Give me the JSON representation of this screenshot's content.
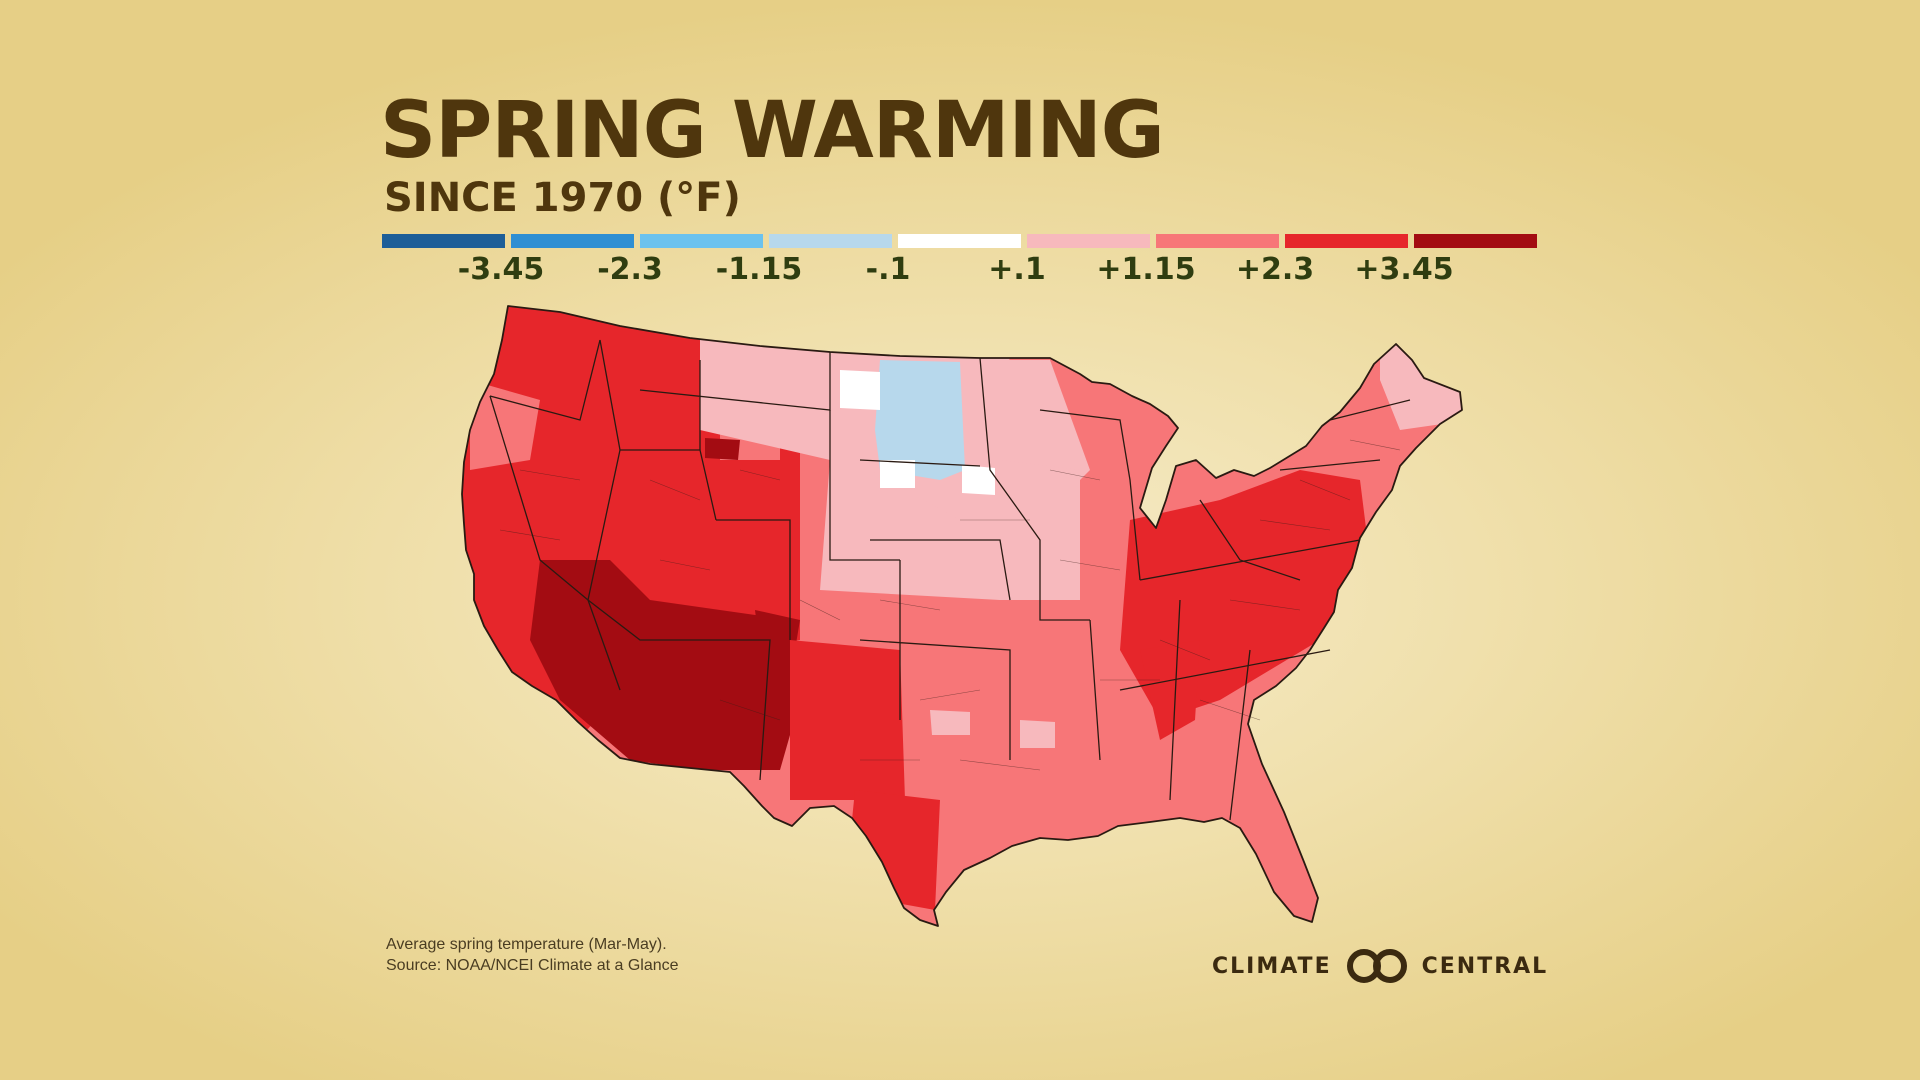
{
  "title": "SPRING WARMING",
  "subtitle": "SINCE 1970 (°F)",
  "legend": {
    "colors": [
      "#1d5e98",
      "#2f8fd3",
      "#6cc2ee",
      "#b7d8ec",
      "#ffffff",
      "#f7b9bd",
      "#f77678",
      "#e6262b",
      "#a30c12"
    ],
    "ticks": [
      "-3.45",
      "-2.3",
      "-1.15",
      "-.1",
      "+.1",
      "+1.15",
      "+2.3",
      "+3.45"
    ]
  },
  "footnote": {
    "line1": "Average spring temperature (Mar-May).",
    "line2": "Source: NOAA/NCEI Climate at a Glance"
  },
  "logo": {
    "left": "CLIMATE",
    "right": "CENTRAL",
    "mark": "linked-circles-icon"
  },
  "map": {
    "region": "Contiguous United States",
    "unit": "°F change in spring temperature since 1970",
    "outline_color": "#2a1a12",
    "regions_summary": [
      {
        "area": "Southwest (Arizona, southern Nevada, New Mexico)",
        "class": "> +3.45",
        "color": "#a30c12"
      },
      {
        "area": "West and Intermountain",
        "class": "+2.3 to +3.45",
        "color": "#e6262b"
      },
      {
        "area": "Appalachians and Mid-Atlantic",
        "class": "+2.3 to +3.45",
        "color": "#e6262b"
      },
      {
        "area": "Southern Plains, Southeast, Midwest",
        "class": "+1.15 to +2.3",
        "color": "#f77678"
      },
      {
        "area": "Northern Plains (Montana, Nebraska, Iowa)",
        "class": "+0.1 to +1.15",
        "color": "#f7b9bd"
      },
      {
        "area": "North Dakota and South Dakota core",
        "class": "-1.15 to -0.1",
        "color": "#b7d8ec"
      },
      {
        "area": "Scattered North Dakota divisions",
        "class": "-0.1 to +0.1",
        "color": "#ffffff"
      }
    ]
  }
}
